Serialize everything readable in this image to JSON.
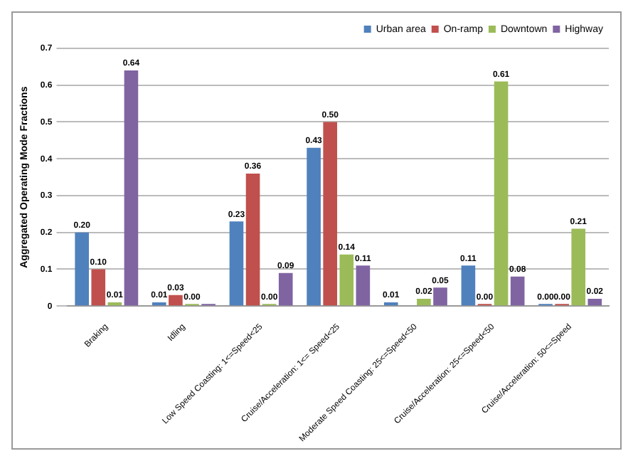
{
  "chart_data": {
    "type": "bar",
    "ylabel": "Aggregated Operating Mode Fractions",
    "categories": [
      "Braking",
      "Idling",
      "Low Speed Coasting: 1<=Speed<25",
      "Cruise/Acceleration: 1<= Speed<25",
      "Moderate Speed Coasting: 25<=Speed<50",
      "Cruise/Acceleration: 25<=Speed<50",
      "Cruise/Acceleration: 50<=Speed"
    ],
    "series": [
      {
        "name": "Urban area",
        "color": "#4f81bd",
        "values": [
          0.2,
          0.01,
          0.23,
          0.43,
          0.01,
          0.11,
          0.0
        ],
        "value_labels": [
          "0.20",
          "0.01",
          "0.23",
          "0.43",
          "0.01",
          "0.11",
          "0.00"
        ]
      },
      {
        "name": "On-ramp",
        "color": "#c0504d",
        "values": [
          0.1,
          0.03,
          0.36,
          0.5,
          null,
          0.0,
          0.0
        ],
        "value_labels": [
          "0.10",
          "0.03",
          "0.36",
          "0.50",
          null,
          "0.00",
          "0.00"
        ]
      },
      {
        "name": "Downtown",
        "color": "#9bbb59",
        "values": [
          0.01,
          0.0,
          0.0,
          0.14,
          0.02,
          0.61,
          0.21
        ],
        "value_labels": [
          "0.01",
          "0.00",
          "0.00",
          "0.14",
          "0.02",
          "0.61",
          "0.21"
        ]
      },
      {
        "name": "Highway",
        "color": "#8064a2",
        "values": [
          0.64,
          0.0,
          0.09,
          0.11,
          0.05,
          0.08,
          0.02
        ],
        "value_labels": [
          "0.64",
          null,
          "0.09",
          "0.11",
          "0.05",
          "0.08",
          "0.02"
        ]
      }
    ],
    "ylim": [
      0,
      0.7
    ],
    "yticks": [
      0,
      0.1,
      0.2,
      0.3,
      0.4,
      0.5,
      0.6,
      0.7
    ],
    "grid": "y",
    "legend": "top right"
  }
}
